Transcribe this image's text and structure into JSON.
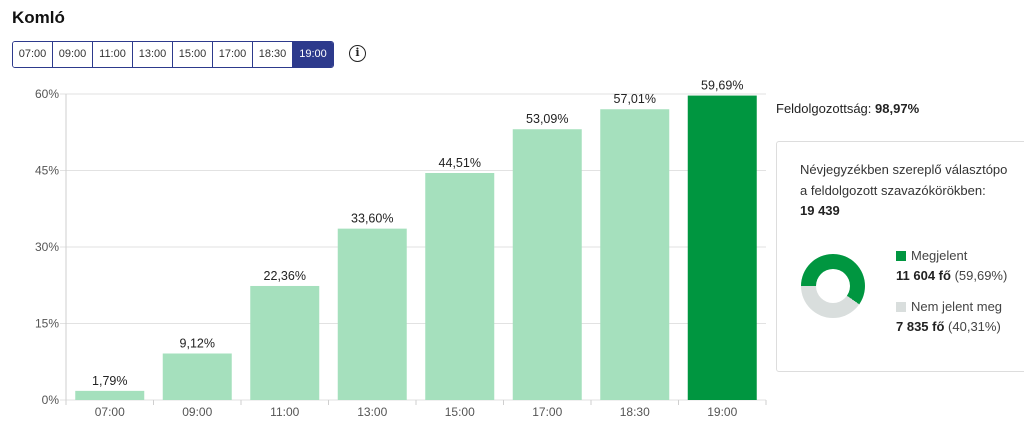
{
  "title": "Komló",
  "time_tabs": [
    "07:00",
    "09:00",
    "11:00",
    "13:00",
    "15:00",
    "17:00",
    "18:30",
    "19:00"
  ],
  "active_tab": "19:00",
  "icons": {
    "info": "info-icon"
  },
  "colors": {
    "accent": "#2d3a8c",
    "bar_light": "#a5e0bd",
    "bar_active": "#009640",
    "not_appeared": "#d9dedd"
  },
  "chart_data": {
    "type": "bar",
    "categories": [
      "07:00",
      "09:00",
      "11:00",
      "13:00",
      "15:00",
      "17:00",
      "18:30",
      "19:00"
    ],
    "values": [
      1.79,
      9.12,
      22.36,
      33.6,
      44.51,
      53.09,
      57.01,
      59.69
    ],
    "labels": [
      "1,79%",
      "9,12%",
      "22,36%",
      "33,60%",
      "44,51%",
      "53,09%",
      "57,01%",
      "59,69%"
    ],
    "highlighted": "19:00",
    "ylim": [
      0,
      60
    ],
    "yticks": [
      0,
      15,
      30,
      45,
      60
    ],
    "ytick_labels": [
      "0%",
      "15%",
      "30%",
      "45%",
      "60%"
    ],
    "grid": true
  },
  "processed": {
    "label": "Feldolgozottság:",
    "value": "98,97%"
  },
  "summary": {
    "line1": "Névjegyzékben szereplő választópo",
    "line2": "a feldolgozott szavazókörökben:",
    "total": "19 439",
    "appeared": {
      "label": "Megjelent",
      "count": "11 604 fő",
      "percent": "(59,69%)",
      "fraction": 0.5969
    },
    "not_appeared": {
      "label": "Nem jelent meg",
      "count": "7 835 fő",
      "percent": "(40,31%)",
      "fraction": 0.4031
    }
  }
}
